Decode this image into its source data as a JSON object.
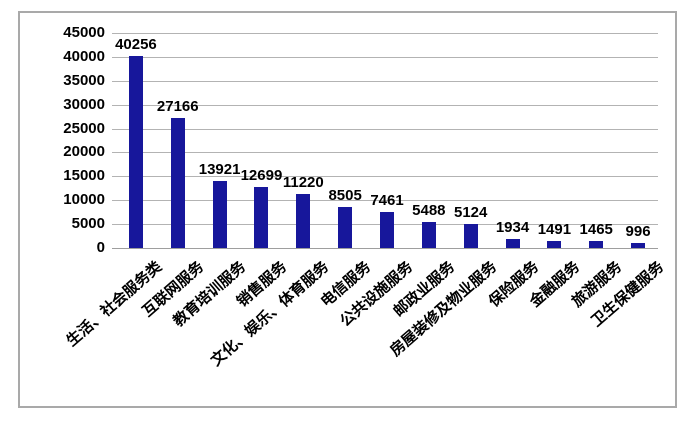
{
  "chart_data": {
    "type": "bar",
    "title": "",
    "xlabel": "",
    "ylabel": "",
    "categories": [
      "生活、社会服务类",
      "互联网服务",
      "教育培训服务",
      "销售服务",
      "文化、娱乐、体育服务",
      "电信服务",
      "公共设施服务",
      "邮政业服务",
      "房屋装修及物业服务",
      "保险服务",
      "金融服务",
      "旅游服务",
      "卫生保健服务"
    ],
    "values": [
      40256,
      27166,
      13921,
      12699,
      11220,
      8505,
      7461,
      5488,
      5124,
      1934,
      1491,
      1465,
      996
    ],
    "data_labels": [
      "40256",
      "27166",
      "13921",
      "12699",
      "11220",
      "8505",
      "7461",
      "5488",
      "5124",
      "1934",
      "1491",
      "1465",
      "996"
    ],
    "ylim": [
      0,
      45000
    ],
    "yticks": [
      "0",
      "5000",
      "10000",
      "15000",
      "20000",
      "25000",
      "30000",
      "35000",
      "40000",
      "45000"
    ],
    "ytick_values": [
      0,
      5000,
      10000,
      15000,
      20000,
      25000,
      30000,
      35000,
      40000,
      45000
    ],
    "grid": true,
    "legend_position": "none",
    "bar_color": "#17179b"
  },
  "colors": {
    "bar": "#17179b",
    "gridline": "#b3b3b3",
    "axis_line": "#9e9e9e",
    "frame_border": "#a9a9a9",
    "background": "#ffffff",
    "text": "#000000"
  }
}
